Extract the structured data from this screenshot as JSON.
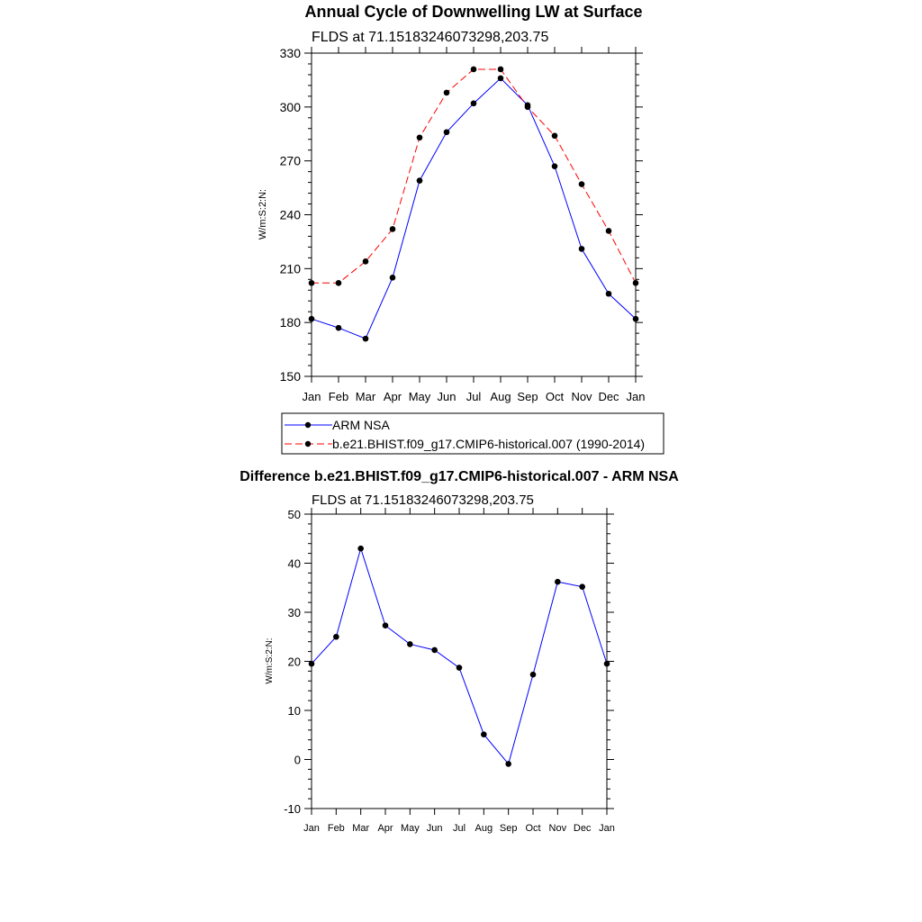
{
  "chart_data": [
    {
      "type": "line",
      "title": "Annual Cycle of Downwelling LW at Surface",
      "subtitle": "FLDS at 71.15183246073298,203.75",
      "xlabel": "",
      "ylabel": "W/m:S:2:N:",
      "categories": [
        "Jan",
        "Feb",
        "Mar",
        "Apr",
        "May",
        "Jun",
        "Jul",
        "Aug",
        "Sep",
        "Oct",
        "Nov",
        "Dec",
        "Jan"
      ],
      "ylim": [
        150,
        330
      ],
      "yticks": [
        150,
        180,
        210,
        240,
        270,
        300,
        330
      ],
      "legend_position": "bottom",
      "series": [
        {
          "name": "ARM NSA",
          "color": "#0000ff",
          "dash": "solid",
          "values": [
            182,
            177,
            171,
            205,
            259,
            286,
            302,
            316,
            301,
            267,
            221,
            196,
            182
          ]
        },
        {
          "name": "b.e21.BHIST.f09_g17.CMIP6-historical.007 (1990-2014)",
          "color": "#ff0000",
          "dash": "dashed",
          "values": [
            202,
            202,
            214,
            232,
            283,
            308,
            321,
            321,
            300,
            284,
            257,
            231,
            202
          ]
        }
      ]
    },
    {
      "type": "line",
      "title": "Difference b.e21.BHIST.f09_g17.CMIP6-historical.007 - ARM NSA",
      "subtitle": "FLDS at 71.15183246073298,203.75",
      "xlabel": "",
      "ylabel": "W/m:S:2:N:",
      "categories": [
        "Jan",
        "Feb",
        "Mar",
        "Apr",
        "May",
        "Jun",
        "Jul",
        "Aug",
        "Sep",
        "Oct",
        "Nov",
        "Dec",
        "Jan"
      ],
      "ylim": [
        -10,
        50
      ],
      "yticks": [
        -10,
        0,
        10,
        20,
        30,
        40,
        50
      ],
      "series": [
        {
          "name": "Difference",
          "color": "#0000ff",
          "dash": "solid",
          "values": [
            19.5,
            25,
            43,
            27.3,
            23.5,
            22.3,
            18.7,
            5.1,
            -0.9,
            17.3,
            36.2,
            35.2,
            19.5
          ]
        }
      ]
    }
  ]
}
